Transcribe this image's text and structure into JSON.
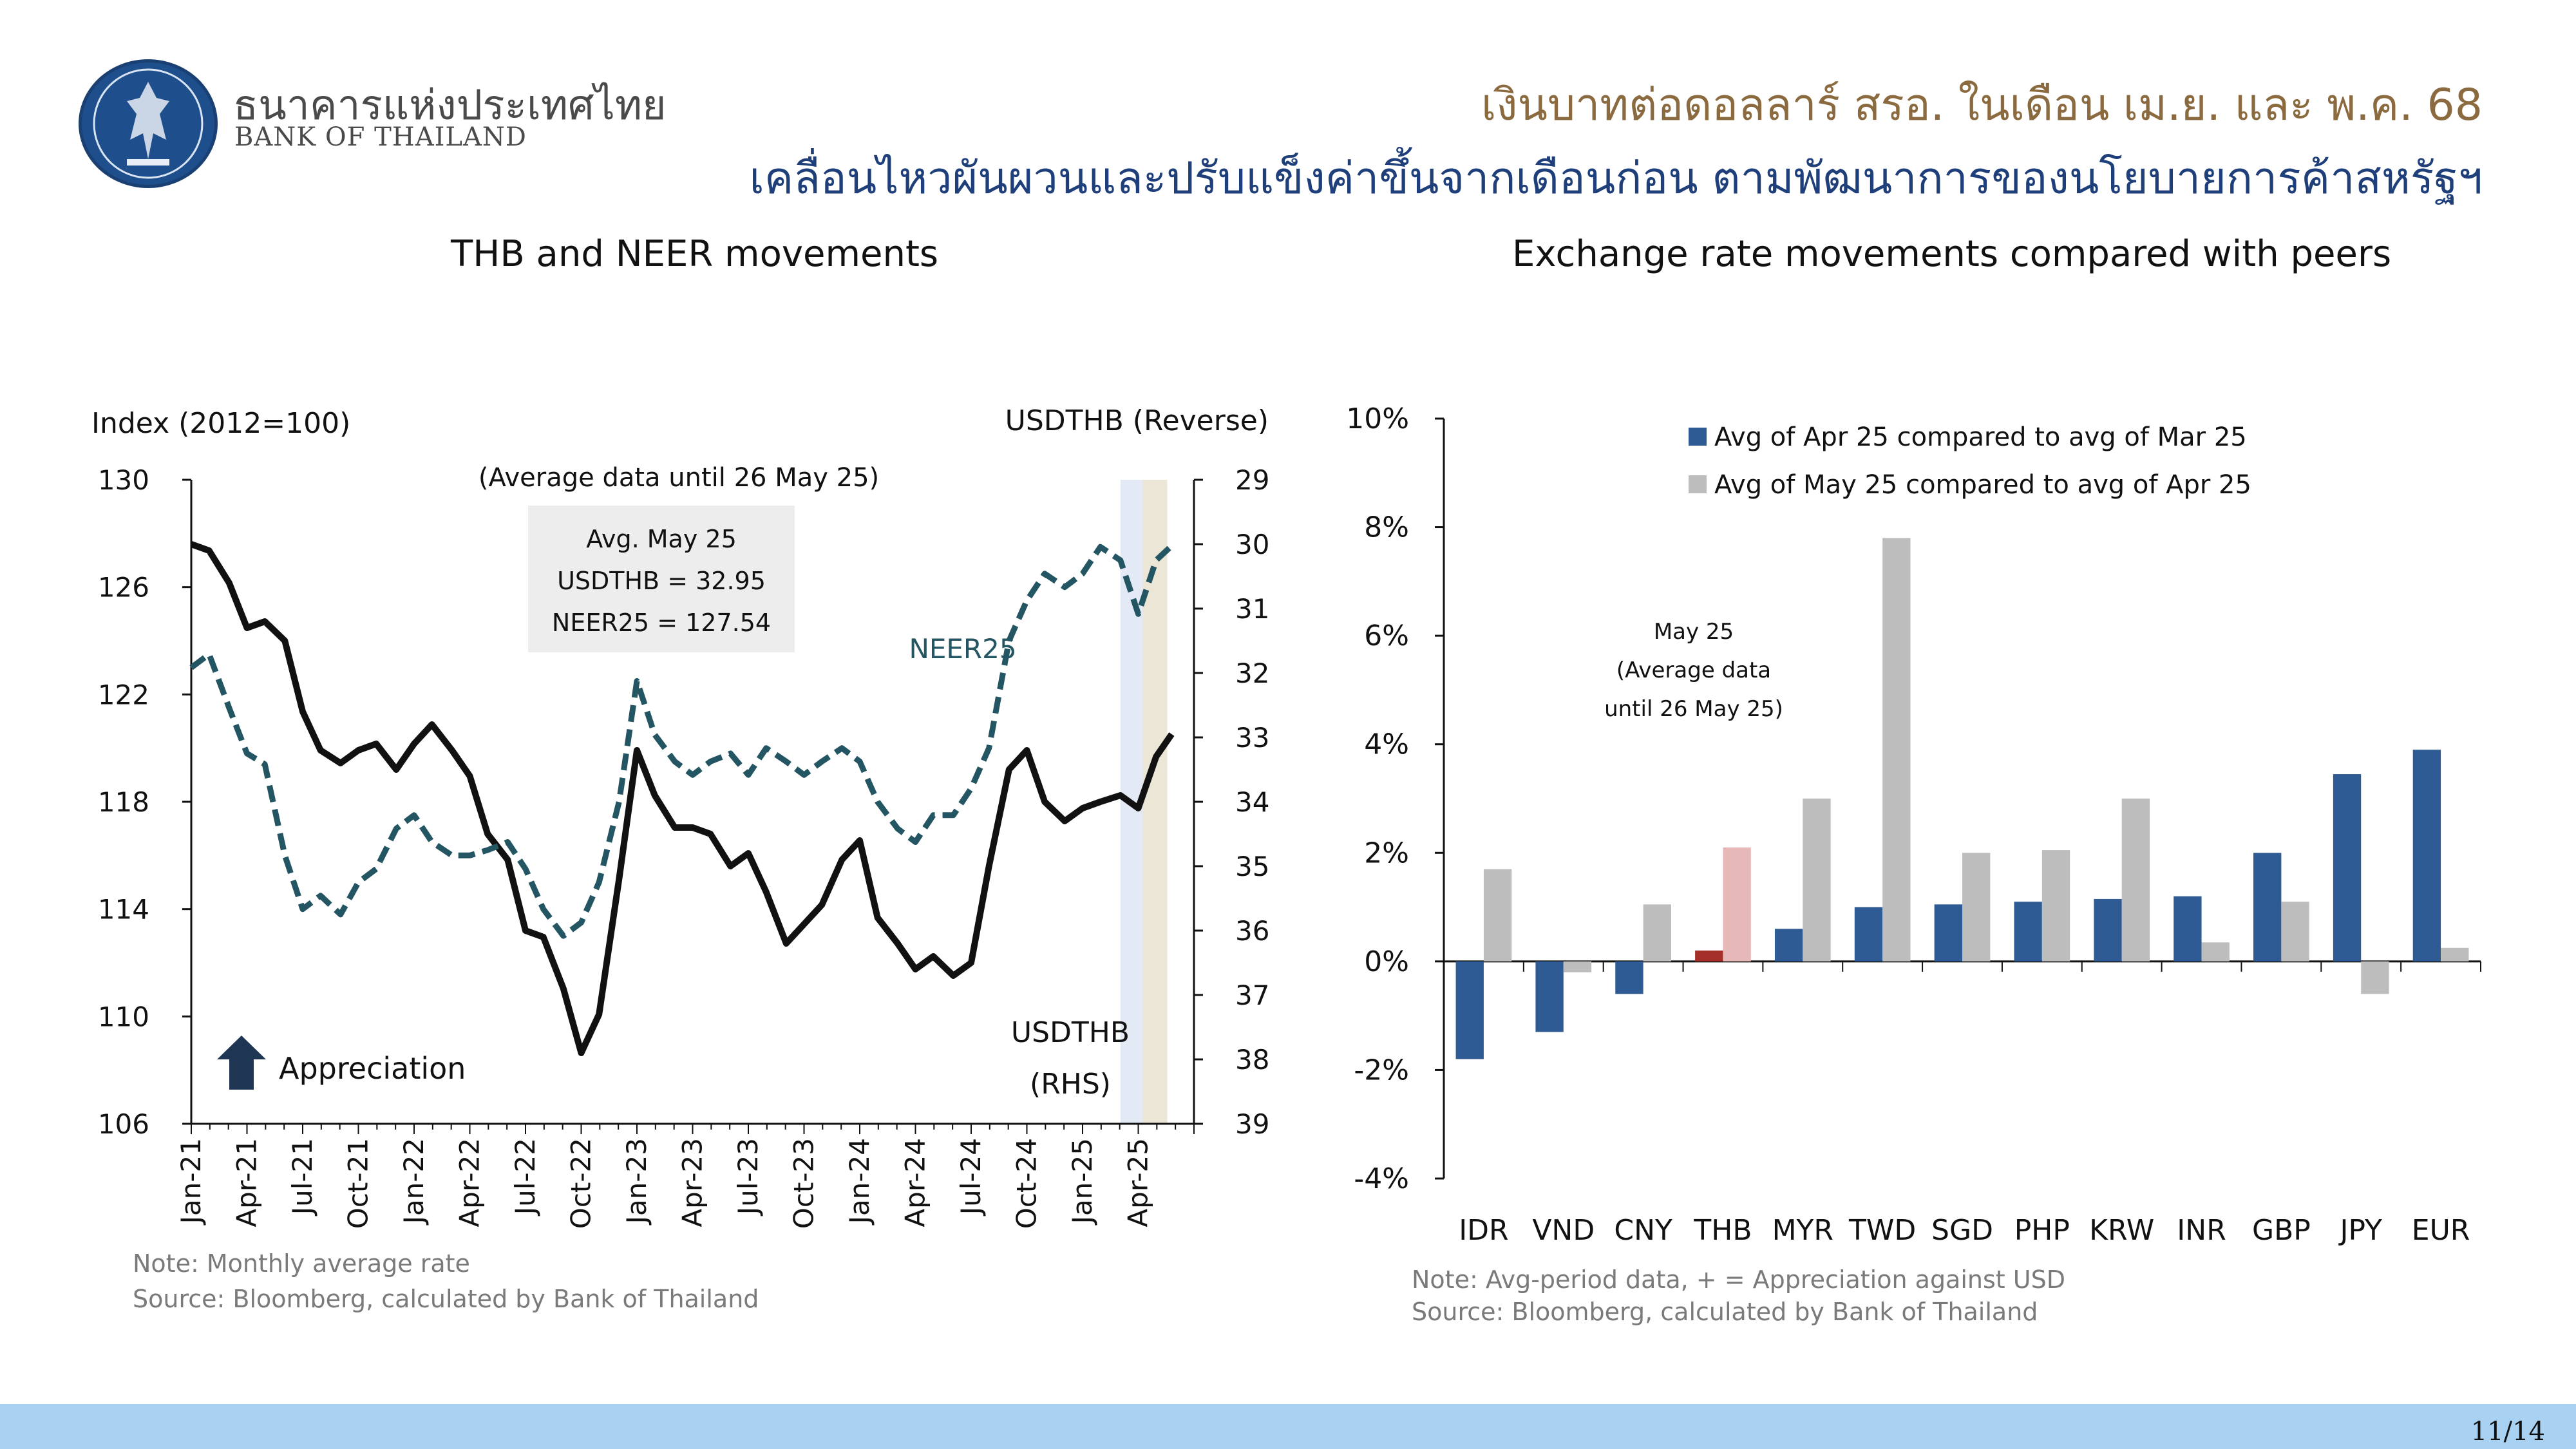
{
  "header": {
    "bank_name_th": "ธนาคารแห่งประเทศไทย",
    "bank_name_en": "BANK OF THAILAND",
    "title_line1": "เงินบาทต่อดอลลาร์ สรอ. ในเดือน เม.ย. และ พ.ค. 68",
    "title_line2": "เคลื่อนไหวผันผวนและปรับแข็งค่าขึ้นจากเดือนก่อน ตามพัฒนาการของนโยบายการค้าสหรัฐฯ"
  },
  "left_panel": {
    "title": "THB and NEER movements",
    "note": "Note: Monthly average rate",
    "source": "Source: Bloomberg, calculated by Bank of Thailand"
  },
  "right_panel": {
    "title": "Exchange rate movements compared with peers",
    "note": "Note: Avg-period data, + = Appreciation against USD",
    "source": "Source: Bloomberg, calculated by Bank of Thailand"
  },
  "page": {
    "number": "11/14"
  },
  "chart_data": [
    {
      "type": "line",
      "ylabel_left": "Index (2012=100)",
      "ylabel_right": "USDTHB (Reverse)",
      "ylim_left": [
        106,
        130
      ],
      "ylim_right": [
        39,
        29
      ],
      "yticks_left": [
        "130",
        "126",
        "122",
        "118",
        "114",
        "110",
        "106"
      ],
      "yticks_right": [
        "29",
        "30",
        "31",
        "32",
        "33",
        "34",
        "35",
        "36",
        "37",
        "38",
        "39"
      ],
      "x_tick_labels": [
        "Jan-21",
        "Apr-21",
        "Jul-21",
        "Oct-21",
        "Jan-22",
        "Apr-22",
        "Jul-22",
        "Oct-22",
        "Jan-23",
        "Apr-23",
        "Jul-23",
        "Oct-23",
        "Jan-24",
        "Apr-24",
        "Jul-24",
        "Oct-24",
        "Jan-25",
        "Apr-25"
      ],
      "annotation_range": "(Average data until 26 May 25)",
      "box_lines": [
        "Avg. May 25",
        "USDTHB = 32.95",
        "NEER25 = 127.54"
      ],
      "appreciation_label": "Appreciation",
      "neer_label": "NEER25",
      "usdthb_label_1": "USDTHB",
      "usdthb_label_2": "(RHS)",
      "series": [
        {
          "name": "USDTHB",
          "axis": "right",
          "color": "#111111",
          "style": "solid",
          "x": [
            2021.0,
            2021.08,
            2021.17,
            2021.25,
            2021.33,
            2021.42,
            2021.5,
            2021.58,
            2021.67,
            2021.75,
            2021.83,
            2021.92,
            2022.0,
            2022.08,
            2022.17,
            2022.25,
            2022.33,
            2022.42,
            2022.5,
            2022.58,
            2022.67,
            2022.75,
            2022.83,
            2022.92,
            2023.0,
            2023.08,
            2023.17,
            2023.25,
            2023.33,
            2023.42,
            2023.5,
            2023.58,
            2023.67,
            2023.75,
            2023.83,
            2023.92,
            2024.0,
            2024.08,
            2024.17,
            2024.25,
            2024.33,
            2024.42,
            2024.5,
            2024.58,
            2024.67,
            2024.75,
            2024.83,
            2024.92,
            2025.0,
            2025.08,
            2025.17,
            2025.25,
            2025.33,
            2025.4
          ],
          "values": [
            30.0,
            30.1,
            30.6,
            31.3,
            31.2,
            31.5,
            32.6,
            33.2,
            33.4,
            33.2,
            33.1,
            33.5,
            33.1,
            32.8,
            33.2,
            33.6,
            34.5,
            34.9,
            36.0,
            36.1,
            36.9,
            37.9,
            37.3,
            35.2,
            33.2,
            33.9,
            34.4,
            34.4,
            34.5,
            35.0,
            34.8,
            35.4,
            36.2,
            35.9,
            35.6,
            34.9,
            34.6,
            35.8,
            36.2,
            36.6,
            36.4,
            36.7,
            36.5,
            35.0,
            33.5,
            33.2,
            34.0,
            34.3,
            34.1,
            34.0,
            33.9,
            34.1,
            33.3,
            32.95
          ]
        },
        {
          "name": "NEER25",
          "axis": "left",
          "color": "#235563",
          "style": "dashed",
          "x": [
            2021.0,
            2021.08,
            2021.17,
            2021.25,
            2021.33,
            2021.42,
            2021.5,
            2021.58,
            2021.67,
            2021.75,
            2021.83,
            2021.92,
            2022.0,
            2022.08,
            2022.17,
            2022.25,
            2022.33,
            2022.42,
            2022.5,
            2022.58,
            2022.67,
            2022.75,
            2022.83,
            2022.92,
            2023.0,
            2023.08,
            2023.17,
            2023.25,
            2023.33,
            2023.42,
            2023.5,
            2023.58,
            2023.67,
            2023.75,
            2023.83,
            2023.92,
            2024.0,
            2024.08,
            2024.17,
            2024.25,
            2024.33,
            2024.42,
            2024.5,
            2024.58,
            2024.67,
            2024.75,
            2024.83,
            2024.92,
            2025.0,
            2025.08,
            2025.17,
            2025.25,
            2025.33,
            2025.4
          ],
          "values": [
            123.0,
            123.5,
            121.5,
            119.8,
            119.4,
            116.0,
            114.0,
            114.5,
            113.8,
            115.0,
            115.5,
            117.0,
            117.5,
            116.5,
            116.0,
            116.0,
            116.2,
            116.5,
            115.5,
            114.0,
            113.0,
            113.5,
            115.0,
            118.0,
            122.5,
            120.5,
            119.5,
            119.0,
            119.5,
            119.8,
            119.0,
            120.0,
            119.5,
            119.0,
            119.5,
            120.0,
            119.5,
            118.0,
            117.0,
            116.5,
            117.5,
            117.5,
            118.5,
            120.0,
            124.0,
            125.5,
            126.5,
            126.0,
            126.5,
            127.5,
            127.0,
            125.0,
            127.0,
            127.54
          ]
        }
      ]
    },
    {
      "type": "bar",
      "categories": [
        "IDR",
        "VND",
        "CNY",
        "THB",
        "MYR",
        "TWD",
        "SGD",
        "PHP",
        "KRW",
        "INR",
        "GBP",
        "JPY",
        "EUR"
      ],
      "series": [
        {
          "name": "Avg of Apr 25 compared to avg of Mar 25",
          "color": "#2f5b94",
          "highlight_color": "#a5302a",
          "values": [
            -1.8,
            -1.3,
            -0.6,
            0.2,
            0.6,
            1.0,
            1.05,
            1.1,
            1.15,
            1.2,
            2.0,
            3.45,
            3.9
          ]
        },
        {
          "name": "Avg of May 25 compared to avg of Apr 25",
          "color": "#bdbdbd",
          "highlight_color": "#e7b8b8",
          "values": [
            1.7,
            -0.2,
            1.05,
            2.1,
            3.0,
            7.8,
            2.0,
            2.05,
            3.0,
            0.35,
            1.1,
            -0.6,
            0.25
          ]
        }
      ],
      "highlight_category": "THB",
      "ylim": [
        -4,
        10
      ],
      "ytick_labels": [
        "10%",
        "8%",
        "6%",
        "4%",
        "2%",
        "0%",
        "-2%",
        "-4%"
      ],
      "annotation_lines": [
        "May 25",
        "(Average data",
        "until 26 May 25)"
      ]
    }
  ]
}
